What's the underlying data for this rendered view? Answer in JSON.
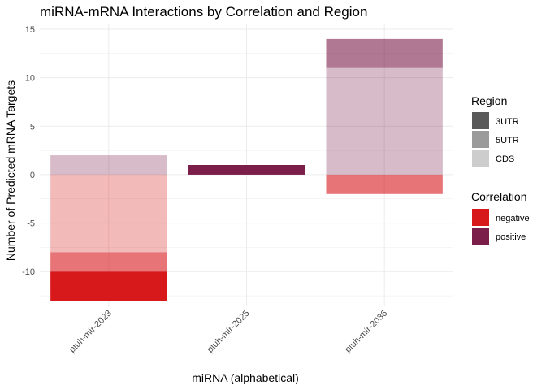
{
  "chart_data": {
    "type": "bar",
    "stacked": true,
    "title": "miRNA-mRNA Interactions by Correlation and Region",
    "xlabel": "miRNA (alphabetical)",
    "ylabel": "Number of Predicted mRNA Targets",
    "categories": [
      "ptuh-mir-2023",
      "ptuh-mir-2025",
      "ptuh-mir-2036"
    ],
    "ylim": [
      -13.5,
      15.5
    ],
    "yticks": [
      15,
      10,
      5,
      0,
      -5,
      -10
    ],
    "grid": true,
    "legend_position": "right",
    "segments": [
      {
        "category": "ptuh-mir-2023",
        "correlation": "positive",
        "region": "CDS",
        "value": 2
      },
      {
        "category": "ptuh-mir-2023",
        "correlation": "negative",
        "region": "CDS",
        "value": -8
      },
      {
        "category": "ptuh-mir-2023",
        "correlation": "negative",
        "region": "5UTR",
        "value": -2
      },
      {
        "category": "ptuh-mir-2023",
        "correlation": "negative",
        "region": "3UTR",
        "value": -3
      },
      {
        "category": "ptuh-mir-2025",
        "correlation": "positive",
        "region": "3UTR",
        "value": 1
      },
      {
        "category": "ptuh-mir-2036",
        "correlation": "positive",
        "region": "CDS",
        "value": 11
      },
      {
        "category": "ptuh-mir-2036",
        "correlation": "positive",
        "region": "5UTR",
        "value": 3
      },
      {
        "category": "ptuh-mir-2036",
        "correlation": "negative",
        "region": "5UTR",
        "value": -2
      }
    ],
    "region_legend": {
      "title": "Region",
      "items": [
        {
          "label": "3UTR",
          "opacity": 1.0
        },
        {
          "label": "5UTR",
          "opacity": 0.6
        },
        {
          "label": "CDS",
          "opacity": 0.3
        }
      ]
    },
    "correlation_legend": {
      "title": "Correlation",
      "items": [
        {
          "label": "negative",
          "color": "#D7191C"
        },
        {
          "label": "positive",
          "color": "#7B1E4A"
        }
      ]
    },
    "colors": {
      "negative": "#D7191C",
      "positive": "#7B1E4A",
      "region_swatch_base": "#595959",
      "grid": "#ebebeb"
    }
  }
}
